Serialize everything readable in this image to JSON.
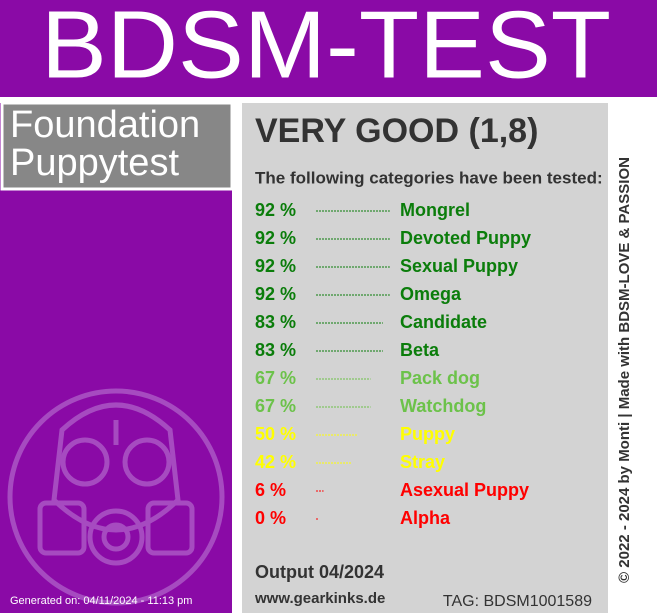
{
  "header": {
    "title": "BDSM-TEST"
  },
  "test": {
    "name_lines": [
      "Foundation",
      "Puppytest"
    ]
  },
  "result": {
    "rating": "VERY GOOD (1,8)",
    "intro": "The following categories have been tested:",
    "items": [
      {
        "value": 92,
        "label": "92 %",
        "name": "Mongrel",
        "color": "#0b7d0b"
      },
      {
        "value": 92,
        "label": "92 %",
        "name": "Devoted Puppy",
        "color": "#0b7d0b"
      },
      {
        "value": 92,
        "label": "92 %",
        "name": "Sexual Puppy",
        "color": "#0b7d0b"
      },
      {
        "value": 92,
        "label": "92 %",
        "name": "Omega",
        "color": "#0b7d0b"
      },
      {
        "value": 83,
        "label": "83 %",
        "name": "Candidate",
        "color": "#0b7d0b"
      },
      {
        "value": 83,
        "label": "83 %",
        "name": "Beta",
        "color": "#0b7d0b"
      },
      {
        "value": 67,
        "label": "67 %",
        "name": "Pack dog",
        "color": "#6cc24a"
      },
      {
        "value": 67,
        "label": "67 %",
        "name": "Watchdog",
        "color": "#6cc24a"
      },
      {
        "value": 50,
        "label": "50 %",
        "name": "Puppy",
        "color": "#ffff00"
      },
      {
        "value": 42,
        "label": "42 %",
        "name": "Stray",
        "color": "#ffff00"
      },
      {
        "value": 6,
        "label": "6 %",
        "name": "Asexual Puppy",
        "color": "#ff0000"
      },
      {
        "value": 0,
        "label": "0 %",
        "name": "Alpha",
        "color": "#ff0000"
      }
    ]
  },
  "footer": {
    "output": "Output 04/2024",
    "website": "www.gearkinks.de",
    "tag": "TAG: BDSM1001589",
    "generated": "Generated on: 04/11/2024 - 11:13 pm",
    "copyright": "© 2022 - 2024 by Monti | Made with BDSM-LOVE & PASSION"
  }
}
